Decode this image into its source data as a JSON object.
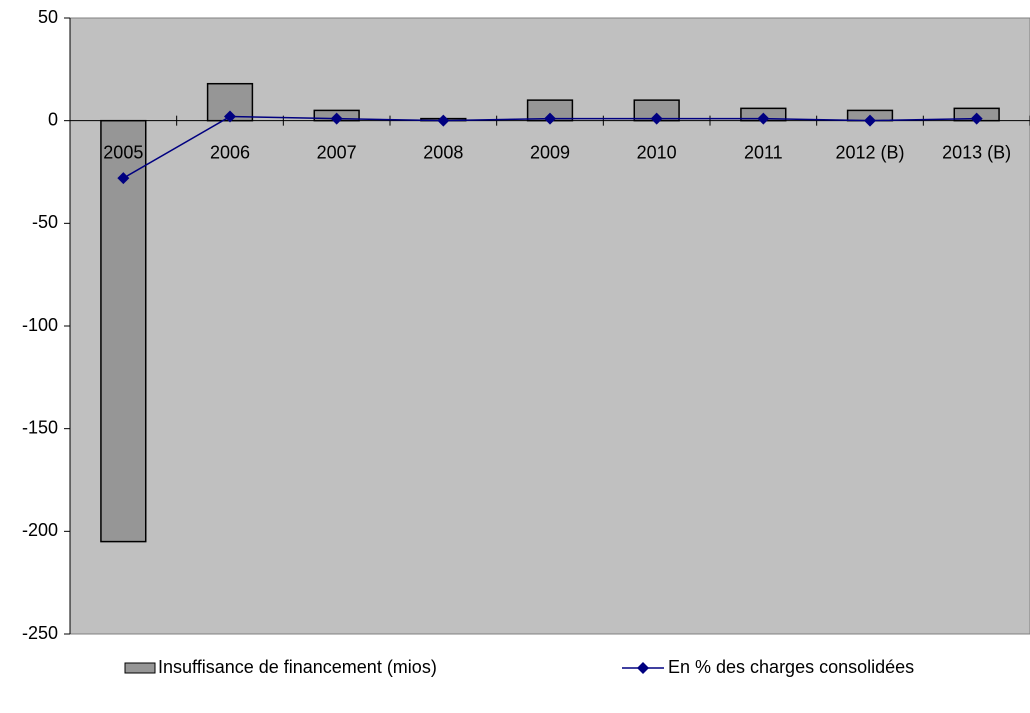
{
  "chart_data": {
    "type": "combo",
    "categories": [
      "2005",
      "2006",
      "2007",
      "2008",
      "2009",
      "2010",
      "2011",
      "2012 (B)",
      "2013 (B)"
    ],
    "series": [
      {
        "name": "Insuffisance de financement (mios)",
        "type": "bar",
        "color": "#969696",
        "values": [
          -205,
          18,
          5,
          1,
          10,
          10,
          6,
          5,
          6
        ]
      },
      {
        "name": "En % des charges consolidées",
        "type": "line",
        "color": "#000080",
        "values": [
          -28,
          2,
          1,
          0,
          1,
          1,
          1,
          0,
          1
        ]
      }
    ],
    "ylim": [
      -250,
      50
    ],
    "yticks": [
      50,
      0,
      -50,
      -100,
      -150,
      -200,
      -250
    ],
    "grid": false
  }
}
